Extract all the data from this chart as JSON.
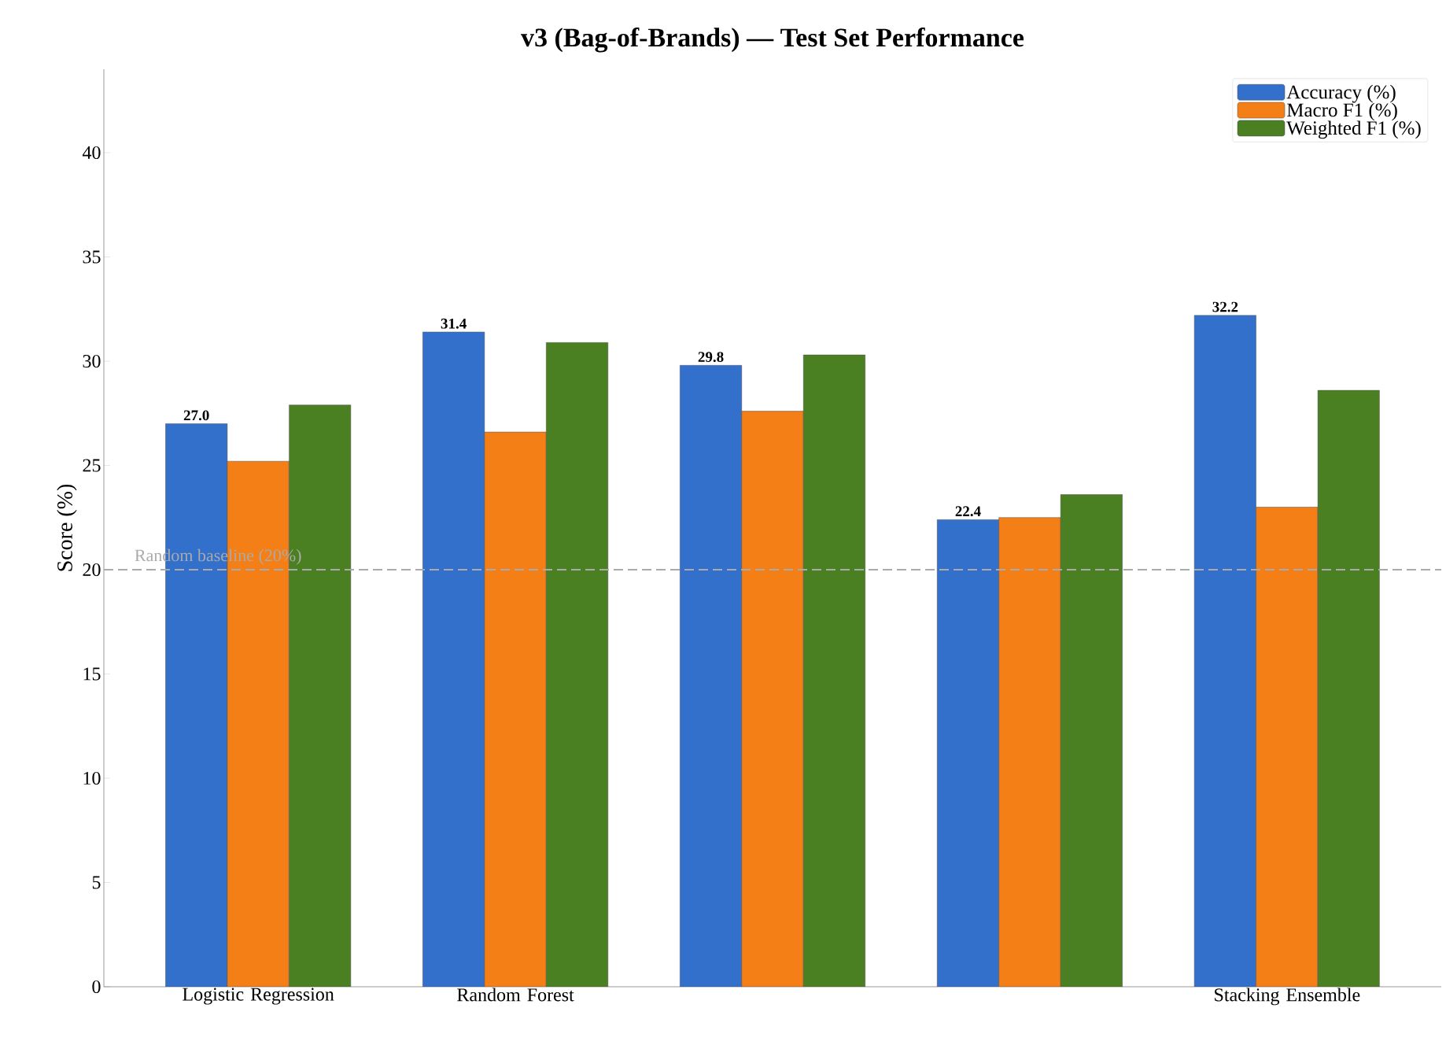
{
  "chart_data": {
    "type": "bar",
    "title": "v3 (Bag-of-Brands) — Test Set Performance",
    "ylabel": "Score (%)",
    "categories": [
      "Logistic Regression",
      "Random Forest",
      null,
      null,
      "Stacking Ensemble"
    ],
    "series": [
      {
        "name": "Accuracy (%)",
        "color": "#3370cc",
        "values": [
          27.0,
          31.4,
          29.8,
          22.4,
          32.2
        ],
        "value_labels": [
          "27.0",
          "31.4",
          "29.8",
          "22.4",
          "32.2"
        ]
      },
      {
        "name": "Macro F1 (%)",
        "color": "#f57f17",
        "values": [
          25.2,
          26.6,
          27.6,
          22.5,
          23.0
        ]
      },
      {
        "name": "Weighted F1 (%)",
        "color": "#4a7f22",
        "values": [
          27.9,
          30.9,
          30.3,
          23.6,
          28.6
        ]
      }
    ],
    "ylim": [
      0,
      44
    ],
    "yticks": [
      0,
      5,
      10,
      15,
      20,
      25,
      30,
      35,
      40
    ],
    "ref_lines": [
      {
        "axis": "y",
        "value": 20,
        "label": "Random baseline (20%)",
        "color": "#aaaaaa",
        "line_style": "dashed"
      }
    ],
    "legend": "top right",
    "grid": false
  }
}
